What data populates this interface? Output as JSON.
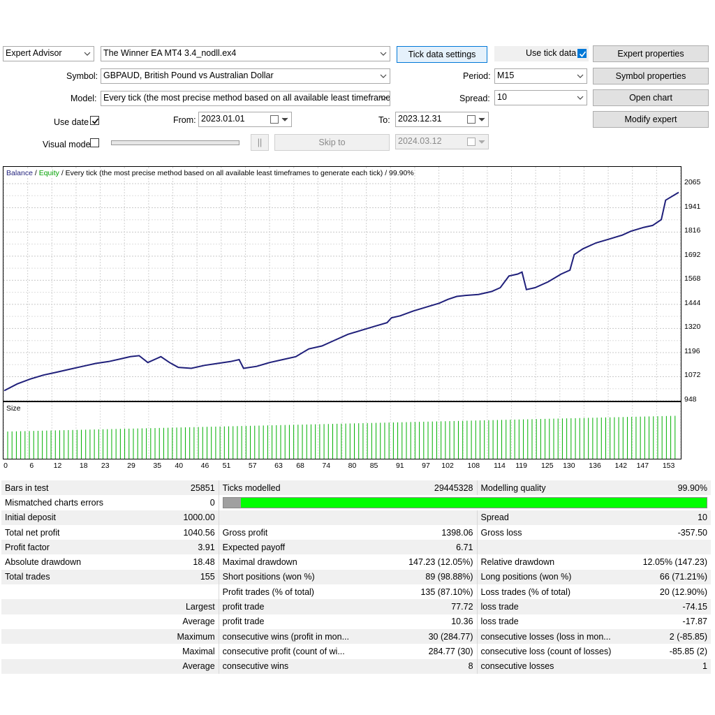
{
  "header": {
    "mode": "Expert Advisor",
    "expert": "The Winner EA MT4 3.4_nodll.ex4",
    "tick_settings": "Tick data settings",
    "use_tick_label": "Use tick data",
    "expert_props": "Expert properties",
    "symbol_label": "Symbol:",
    "symbol": "GBPAUD, British Pound vs Australian Dollar",
    "period_label": "Period:",
    "period": "M15",
    "symbol_props": "Symbol properties",
    "model_label": "Model:",
    "model": "Every tick (the most precise method based on all available least timeframes",
    "spread_label": "Spread:",
    "spread": "10",
    "open_chart": "Open chart",
    "use_date_label": "Use date",
    "from_label": "From:",
    "from": "2023.01.01",
    "to_label": "To:",
    "to": "2023.12.31",
    "modify_expert": "Modify expert",
    "visual_mode_label": "Visual mode",
    "pause": "||",
    "skip_to": "Skip to",
    "skip_date": "2024.03.12"
  },
  "colors": {
    "balance": "#1f1f7a",
    "equity": "#00a000",
    "volume": "#00b000",
    "quality_good": "#00ff00",
    "quality_bad": "#a0a0a0"
  },
  "chart_data": [
    {
      "type": "line",
      "title_balance": "Balance",
      "title_sep1": " / ",
      "title_equity": "Equity",
      "title_rest": " / Every tick (the most precise method based on all available least timeframes to generate each tick) / 99.90%",
      "ylim": [
        948,
        2065
      ],
      "yticks": [
        "2065",
        "1941",
        "1816",
        "1692",
        "1568",
        "1444",
        "1320",
        "1196",
        "1072",
        "948"
      ],
      "x": [
        0,
        3,
        6,
        9,
        12,
        15,
        18,
        21,
        24,
        27,
        29,
        31,
        33,
        35,
        36,
        38,
        40,
        43,
        46,
        49,
        52,
        54,
        55,
        58,
        61,
        64,
        67,
        70,
        73,
        76,
        79,
        82,
        85,
        88,
        89,
        91,
        94,
        97,
        100,
        102,
        104,
        106,
        109,
        112,
        114,
        116,
        118,
        119,
        120,
        122,
        125,
        128,
        130,
        131,
        133,
        136,
        139,
        142,
        144,
        147,
        149,
        151,
        152,
        155
      ],
      "y": [
        1000,
        1035,
        1060,
        1080,
        1095,
        1110,
        1125,
        1140,
        1150,
        1165,
        1175,
        1180,
        1145,
        1165,
        1175,
        1145,
        1120,
        1115,
        1130,
        1140,
        1150,
        1160,
        1115,
        1125,
        1145,
        1160,
        1175,
        1215,
        1230,
        1260,
        1290,
        1310,
        1330,
        1350,
        1375,
        1385,
        1410,
        1430,
        1450,
        1470,
        1485,
        1490,
        1495,
        1510,
        1530,
        1590,
        1600,
        1610,
        1520,
        1530,
        1560,
        1600,
        1620,
        1700,
        1730,
        1760,
        1780,
        1800,
        1820,
        1840,
        1850,
        1880,
        1980,
        2020
      ]
    },
    {
      "type": "bar",
      "title": "Size",
      "xticks": [
        "0",
        "6",
        "12",
        "18",
        "23",
        "29",
        "35",
        "40",
        "46",
        "51",
        "57",
        "63",
        "68",
        "74",
        "80",
        "85",
        "91",
        "97",
        "102",
        "108",
        "114",
        "119",
        "125",
        "130",
        "136",
        "142",
        "147",
        "153"
      ],
      "values_note_start": 0.52,
      "values_note_end": 0.82,
      "count": 155
    }
  ],
  "report": {
    "rows": [
      {
        "l1": "Bars in test",
        "v1": "25851",
        "l2": "Ticks modelled",
        "v2": "29445328",
        "l3": "Modelling quality",
        "v3": "99.90%"
      },
      {
        "l1": "Mismatched charts errors",
        "v1": "0",
        "l2": "",
        "v2": "",
        "l3": "",
        "v3": ""
      },
      {
        "l1": "Initial deposit",
        "v1": "1000.00",
        "l2": "",
        "v2": "",
        "l3": "Spread",
        "v3": "10"
      },
      {
        "l1": "Total net profit",
        "v1": "1040.56",
        "l2": "Gross profit",
        "v2": "1398.06",
        "l3": "Gross loss",
        "v3": "-357.50"
      },
      {
        "l1": "Profit factor",
        "v1": "3.91",
        "l2": "Expected payoff",
        "v2": "6.71",
        "l3": "",
        "v3": ""
      },
      {
        "l1": "Absolute drawdown",
        "v1": "18.48",
        "l2": "Maximal drawdown",
        "v2": "147.23 (12.05%)",
        "l3": "Relative drawdown",
        "v3": "12.05% (147.23)"
      },
      {
        "l1": "Total trades",
        "v1": "155",
        "l2": "Short positions (won %)",
        "v2": "89 (98.88%)",
        "l3": "Long positions (won %)",
        "v3": "66 (71.21%)"
      },
      {
        "l1": "",
        "v1": "",
        "l2": "Profit trades (% of total)",
        "v2": "135 (87.10%)",
        "l3": "Loss trades (% of total)",
        "v3": "20 (12.90%)"
      },
      {
        "l1": "",
        "v1": "Largest",
        "l2": "profit trade",
        "v2": "77.72",
        "l3": "loss trade",
        "v3": "-74.15"
      },
      {
        "l1": "",
        "v1": "Average",
        "l2": "profit trade",
        "v2": "10.36",
        "l3": "loss trade",
        "v3": "-17.87"
      },
      {
        "l1": "",
        "v1": "Maximum",
        "l2": "consecutive wins (profit in mon...",
        "v2": "30 (284.77)",
        "l3": "consecutive losses (loss in mon...",
        "v3": "2 (-85.85)"
      },
      {
        "l1": "",
        "v1": "Maximal",
        "l2": "consecutive profit (count of wi...",
        "v2": "284.77 (30)",
        "l3": "consecutive loss (count of losses)",
        "v3": "-85.85 (2)"
      },
      {
        "l1": "",
        "v1": "Average",
        "l2": "consecutive wins",
        "v2": "8",
        "l3": "consecutive losses",
        "v3": "1"
      }
    ],
    "modelling_quality_fraction": 0.999
  }
}
